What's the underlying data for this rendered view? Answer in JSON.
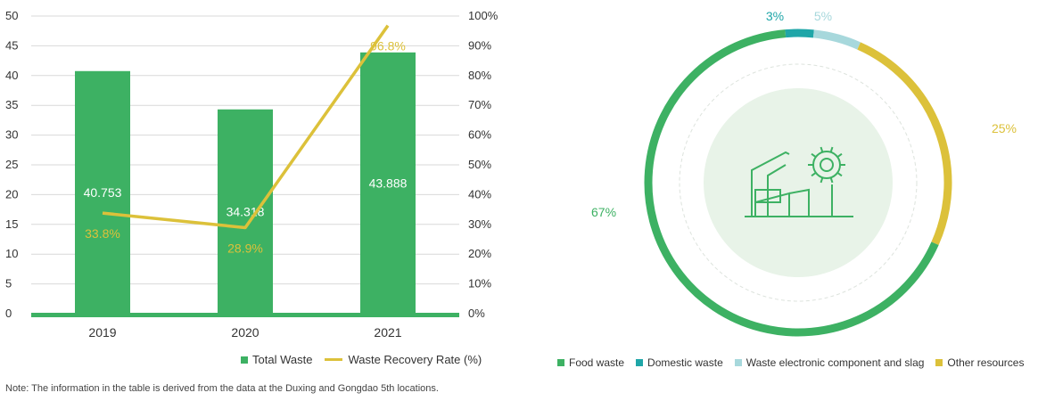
{
  "colors": {
    "green": "#3db163",
    "yellow": "#dcc13a",
    "teal": "#1fa6a8",
    "lightblue": "#a7d8dc",
    "axis_text": "#333333",
    "grid": "#d9d9d9"
  },
  "chart_data": [
    {
      "type": "bar",
      "categories": [
        "2019",
        "2020",
        "2021"
      ],
      "series": [
        {
          "name": "Total Waste",
          "kind": "bar",
          "axis": "left",
          "values": [
            40.753,
            34.318,
            43.888
          ],
          "labels": [
            "40.753",
            "34.318",
            "43.888"
          ]
        },
        {
          "name": "Waste Recovery Rate (%)",
          "kind": "line",
          "axis": "right",
          "values": [
            33.8,
            28.9,
            96.8
          ],
          "labels": [
            "33.8%",
            "28.9%",
            "96.8%"
          ]
        }
      ],
      "y_left": {
        "min": 0,
        "max": 50,
        "ticks": [
          "0",
          "5",
          "10",
          "15",
          "20",
          "25",
          "30",
          "35",
          "40",
          "45",
          "50"
        ]
      },
      "y_right": {
        "min": 0,
        "max": 100,
        "ticks": [
          "0%",
          "10%",
          "20%",
          "30%",
          "40%",
          "50%",
          "60%",
          "70%",
          "80%",
          "90%",
          "100%"
        ]
      },
      "grid": true,
      "legend_position": "bottom-right"
    },
    {
      "type": "pie",
      "style": "donut",
      "slices": [
        {
          "name": "Food waste",
          "value": 67,
          "label": "67%",
          "color": "#3db163"
        },
        {
          "name": "Domestic waste",
          "value": 3,
          "label": "3%",
          "color": "#1fa6a8"
        },
        {
          "name": "Waste electronic component and slag",
          "value": 5,
          "label": "5%",
          "color": "#a7d8dc"
        },
        {
          "name": "Other resources",
          "value": 25,
          "label": "25%",
          "color": "#dcc13a"
        }
      ],
      "legend_position": "bottom",
      "center_icon": "factory-gear-icon"
    }
  ],
  "legend_bar": {
    "total_waste": "Total Waste",
    "recovery_rate": "Waste Recovery Rate (%)"
  },
  "legend_donut": {
    "food": "Food waste",
    "domestic": "Domestic waste",
    "electronic": "Waste electronic component and slag",
    "other": "Other resources"
  },
  "footnote": "Note: The information in the table is derived from the data at the Duxing and Gongdao 5th locations."
}
